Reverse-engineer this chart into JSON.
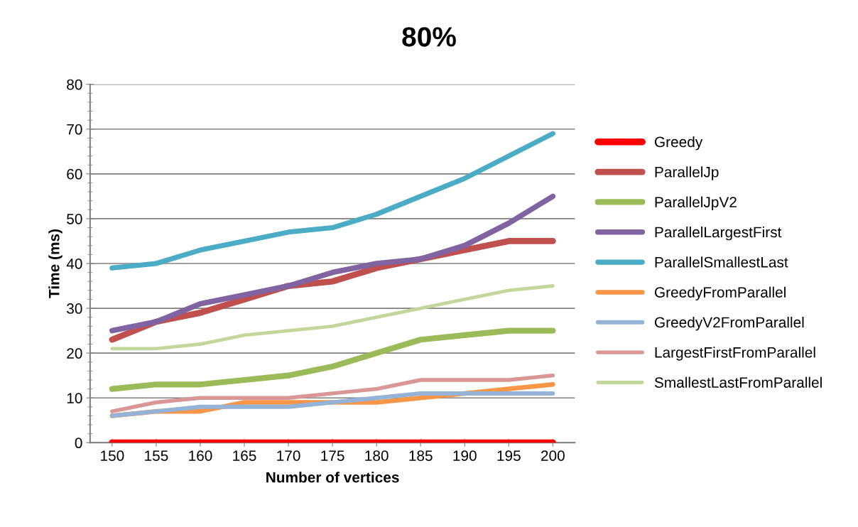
{
  "chart_data": {
    "type": "line",
    "title": "80%",
    "xlabel": "Number of vertices",
    "ylabel": "Time (ms)",
    "categories": [
      "150",
      "155",
      "160",
      "165",
      "170",
      "175",
      "180",
      "185",
      "190",
      "195",
      "200"
    ],
    "ylim": [
      0,
      80
    ],
    "yticks": [
      0,
      10,
      20,
      30,
      40,
      50,
      60,
      70,
      80
    ],
    "grid": "y",
    "legend": "right",
    "marker": "none",
    "line_style": "solid",
    "series": [
      {
        "name": "Greedy",
        "color": "#ff0000",
        "values": [
          0,
          0,
          0,
          0,
          0,
          0,
          0,
          0,
          0,
          0,
          0
        ]
      },
      {
        "name": "ParallelJp",
        "color": "#c0504d",
        "values": [
          23,
          27,
          29,
          32,
          35,
          36,
          39,
          41,
          43,
          45,
          45
        ]
      },
      {
        "name": "ParallelJpV2",
        "color": "#9bbb59",
        "values": [
          12,
          13,
          13,
          14,
          15,
          17,
          20,
          23,
          24,
          25,
          25
        ]
      },
      {
        "name": "ParallelLargestFirst",
        "color": "#8064a2",
        "values": [
          25,
          27,
          31,
          33,
          35,
          38,
          40,
          41,
          44,
          49,
          55
        ]
      },
      {
        "name": "ParallelSmallestLast",
        "color": "#4bacc6",
        "values": [
          39,
          40,
          43,
          45,
          47,
          48,
          51,
          55,
          59,
          64,
          69
        ]
      },
      {
        "name": "GreedyFromParallel",
        "color": "#f79646",
        "values": [
          6,
          7,
          7,
          9,
          9,
          9,
          9,
          10,
          11,
          12,
          13
        ]
      },
      {
        "name": "GreedyV2FromParallel",
        "color": "#95b3d7",
        "values": [
          6,
          7,
          8,
          8,
          8,
          9,
          10,
          11,
          11,
          11,
          11
        ]
      },
      {
        "name": "LargestFirstFromParallel",
        "color": "#d99694",
        "values": [
          7,
          9,
          10,
          10,
          10,
          11,
          12,
          14,
          14,
          14,
          15
        ]
      },
      {
        "name": "SmallestLastFromParallel",
        "color": "#c3d69b",
        "values": [
          21,
          21,
          22,
          24,
          25,
          26,
          28,
          30,
          32,
          34,
          35
        ]
      }
    ]
  }
}
